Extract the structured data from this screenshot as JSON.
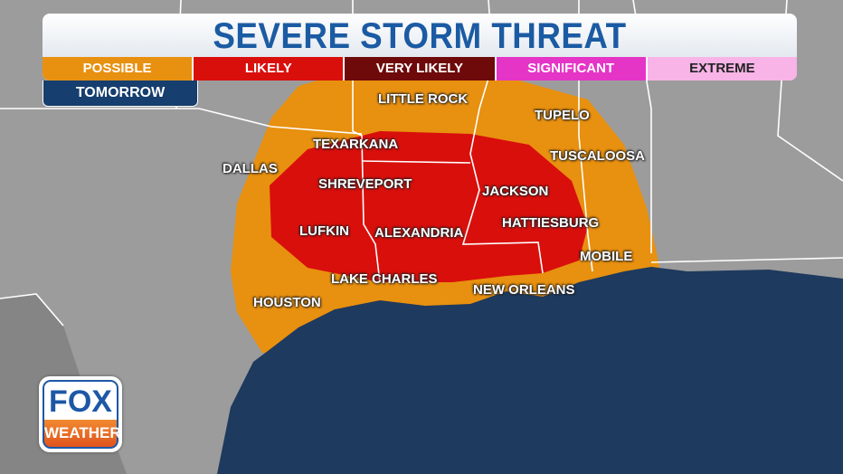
{
  "header": {
    "title": "SEVERE STORM THREAT",
    "period": "TOMORROW"
  },
  "legend": [
    {
      "label": "POSSIBLE",
      "color": "#e8900f",
      "text_color": "#ffffff"
    },
    {
      "label": "LIKELY",
      "color": "#d90f0c",
      "text_color": "#ffffff"
    },
    {
      "label": "VERY LIKELY",
      "color": "#6e0a0a",
      "text_color": "#ffffff"
    },
    {
      "label": "SIGNIFICANT",
      "color": "#e535c7",
      "text_color": "#ffffff"
    },
    {
      "label": "EXTREME",
      "color": "#f8b4e6",
      "text_color": "#222222"
    }
  ],
  "map": {
    "land_color": "#9c9c9c",
    "ocean_color": "#1e3a5e",
    "risk_areas": [
      "POSSIBLE",
      "LIKELY"
    ],
    "cities": [
      "LITTLE ROCK",
      "TUPELO",
      "TEXARKANA",
      "TUSCALOOSA",
      "DALLAS",
      "SHREVEPORT",
      "JACKSON",
      "LUFKIN",
      "ALEXANDRIA",
      "HATTIESBURG",
      "MOBILE",
      "LAKE CHARLES",
      "NEW ORLEANS",
      "HOUSTON"
    ]
  },
  "logo": {
    "line1": "FOX",
    "line2": "WEATHER"
  }
}
